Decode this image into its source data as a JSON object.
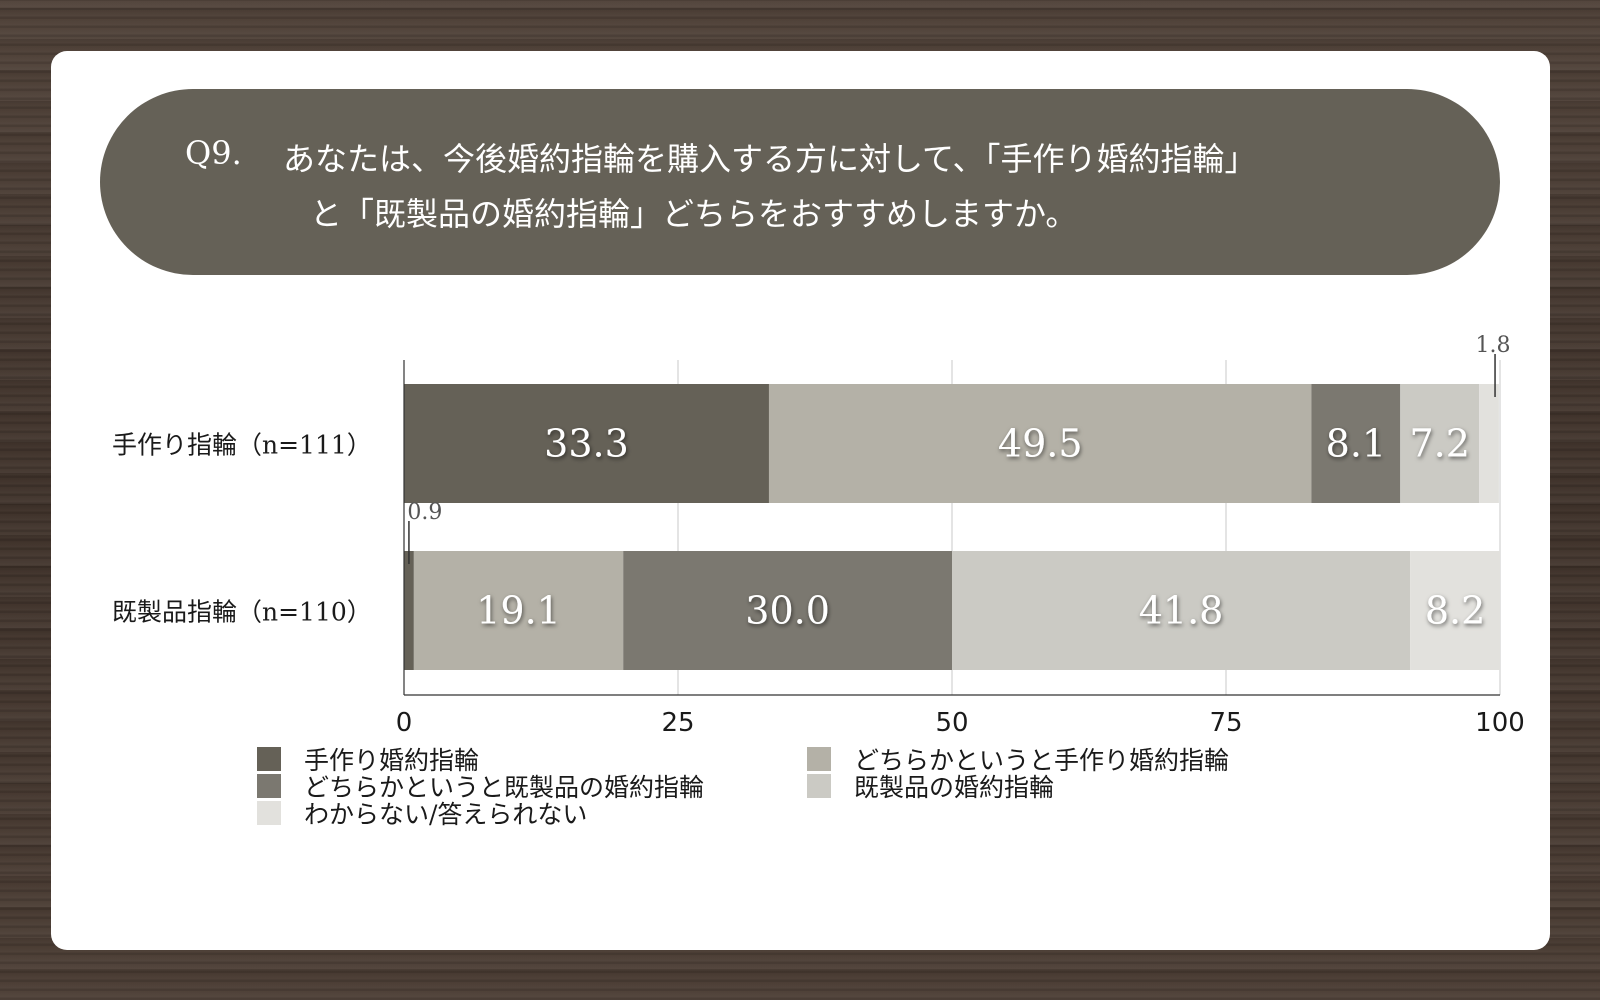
{
  "question": {
    "number": "Q9.",
    "line1": "あなたは、今後婚約指輪を購入する方に対して、「手作り婚約指輪」",
    "line2": "と「既製品の婚約指輪」どちらをおすすめしますか。"
  },
  "chart_data": {
    "type": "bar",
    "orientation": "horizontal",
    "stacked": true,
    "categories": [
      "手作り指輪（n=111）",
      "既製品指輪（n=110）"
    ],
    "series": [
      {
        "name": "手作り婚約指輪",
        "color": "#656157",
        "values": [
          33.3,
          0.9
        ]
      },
      {
        "name": "どちらかというと手作り婚約指輪",
        "color": "#b4b1a7",
        "values": [
          49.5,
          19.1
        ]
      },
      {
        "name": "どちらかというと既製品の婚約指輪",
        "color": "#7b7870",
        "values": [
          8.1,
          30.0
        ]
      },
      {
        "name": "既製品の婚約指輪",
        "color": "#cbcac4",
        "values": [
          7.2,
          41.8
        ]
      },
      {
        "name": "わからない/答えられない",
        "color": "#e2e1dd",
        "values": [
          1.8,
          8.2
        ]
      }
    ],
    "xlim": [
      0,
      100
    ],
    "xticks": [
      0,
      25,
      50,
      75,
      100
    ],
    "grid": true,
    "legend_position": "bottom"
  }
}
